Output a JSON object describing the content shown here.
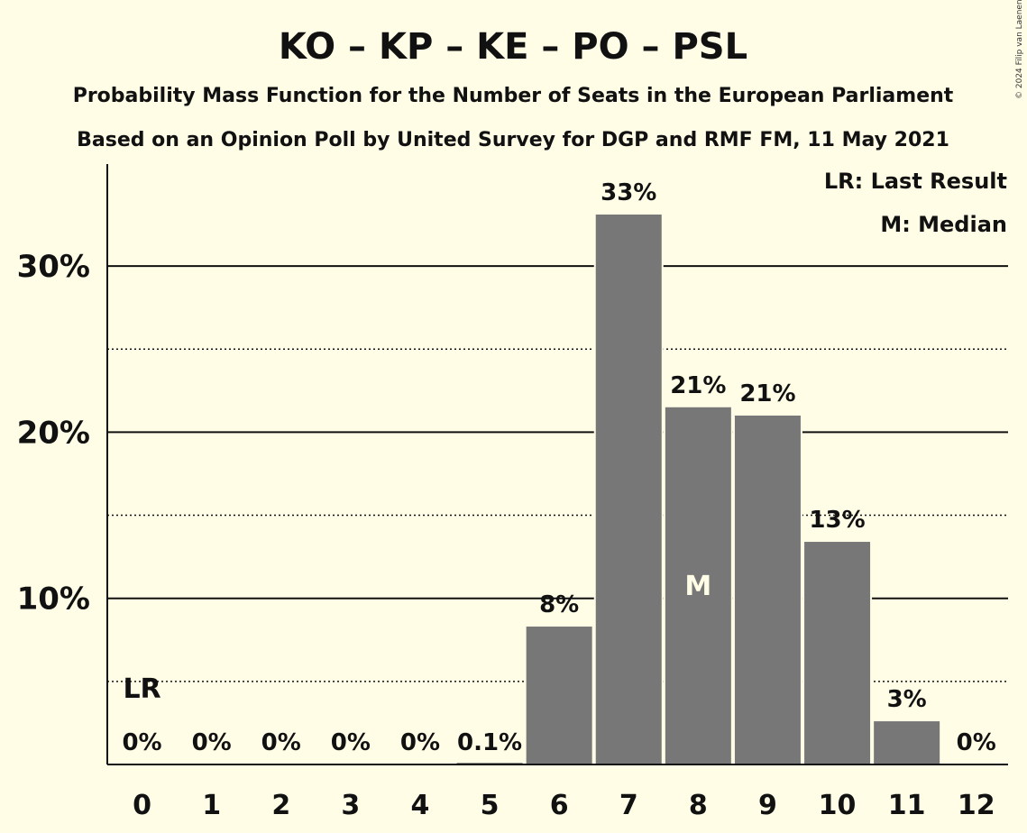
{
  "header": {
    "title": "KO – KP – KE – PO – PSL",
    "subtitle1": "Probability Mass Function for the Number of Seats in the European Parliament",
    "subtitle2": "Based on an Opinion Poll by United Survey for DGP and RMF FM, 11 May 2021",
    "credit": "© 2024 Filip van Laenen"
  },
  "legend": {
    "lr": "LR: Last Result",
    "median": "M: Median"
  },
  "colors": {
    "background": "#fffde6",
    "bar": "#777777",
    "text": "#111111"
  },
  "chart_data": {
    "type": "bar",
    "categories": [
      "0",
      "1",
      "2",
      "3",
      "4",
      "5",
      "6",
      "7",
      "8",
      "9",
      "10",
      "11",
      "12"
    ],
    "values": [
      0,
      0,
      0,
      0,
      0,
      0.1,
      8.3,
      33.1,
      21.5,
      21.0,
      13.4,
      2.6,
      0
    ],
    "labels": [
      "0%",
      "0%",
      "0%",
      "0%",
      "0%",
      "0.1%",
      "8%",
      "33%",
      "21%",
      "21%",
      "13%",
      "3%",
      "0%"
    ],
    "yticks": [
      10,
      20,
      30
    ],
    "ytick_labels": [
      "10%",
      "20%",
      "30%"
    ],
    "minor_gridlines": [
      5,
      15,
      25
    ],
    "ylim": [
      0,
      36
    ],
    "median_index": 8,
    "median_label": "M",
    "last_result_index": 0,
    "last_result_label": "LR",
    "legend_position": "top-right",
    "grid": true
  }
}
